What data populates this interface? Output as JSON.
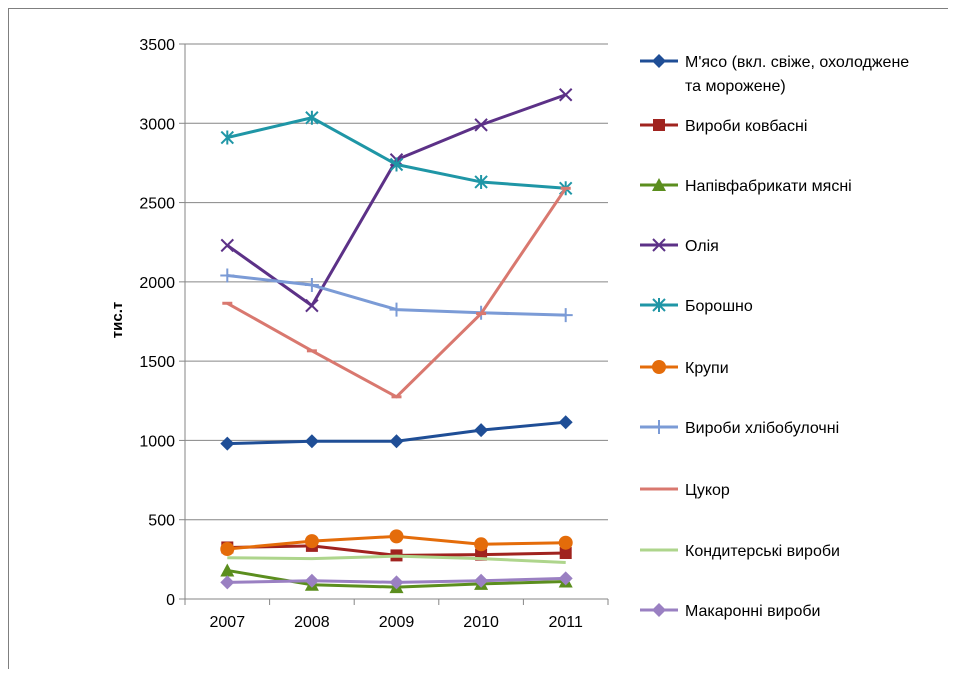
{
  "chart_data": {
    "type": "line",
    "title": "",
    "xlabel": "",
    "ylabel": "тис.т",
    "categories": [
      "2007",
      "2008",
      "2009",
      "2010",
      "2011"
    ],
    "ylim": [
      0,
      3500
    ],
    "yticks": [
      0,
      500,
      1000,
      1500,
      2000,
      2500,
      3000,
      3500
    ],
    "grid": "horizontal",
    "legend_position": "right",
    "series": [
      {
        "name": "М'ясо (вкл. свіже, охолоджене та морожене)",
        "legend_lines": [
          "М'ясо (вкл. свіже, охолоджене",
          "та морожене)"
        ],
        "color": "#1f4e96",
        "marker": "diamond",
        "values": [
          980,
          995,
          995,
          1065,
          1115
        ]
      },
      {
        "name": "Вироби ковбасні",
        "legend_lines": [
          "Вироби ковбасні"
        ],
        "color": "#a0231f",
        "marker": "square",
        "values": [
          325,
          335,
          275,
          280,
          290
        ]
      },
      {
        "name": "Напівфабрикати мясні",
        "legend_lines": [
          "Напівфабрикати мясні"
        ],
        "color": "#5b8e1e",
        "marker": "triangle",
        "values": [
          180,
          90,
          75,
          95,
          110
        ]
      },
      {
        "name": "Олія",
        "legend_lines": [
          "Олія"
        ],
        "color": "#5c3187",
        "marker": "x",
        "values": [
          2230,
          1850,
          2770,
          2990,
          3180
        ]
      },
      {
        "name": "Борошно",
        "legend_lines": [
          "Борошно"
        ],
        "color": "#1f96a6",
        "marker": "asterisk",
        "values": [
          2910,
          3035,
          2740,
          2630,
          2590
        ]
      },
      {
        "name": "Крупи",
        "legend_lines": [
          "Крупи"
        ],
        "color": "#e46c0a",
        "marker": "circle",
        "values": [
          315,
          365,
          395,
          345,
          355
        ]
      },
      {
        "name": "Вироби хлібобулочні",
        "legend_lines": [
          "Вироби хлібобулочні"
        ],
        "color": "#7b9bd6",
        "marker": "plus",
        "values": [
          2040,
          1980,
          1825,
          1805,
          1790
        ]
      },
      {
        "name": "Цукор",
        "legend_lines": [
          "Цукор"
        ],
        "color": "#d9786f",
        "marker": "dash",
        "values": [
          1865,
          1565,
          1275,
          1800,
          2590
        ]
      },
      {
        "name": "Кондитерські вироби",
        "legend_lines": [
          "Кондитерські вироби"
        ],
        "color": "#aed58c",
        "marker": "line",
        "values": [
          260,
          255,
          270,
          255,
          230
        ]
      },
      {
        "name": "Макаронні вироби",
        "legend_lines": [
          "Макаронні вироби"
        ],
        "color": "#9a80c2",
        "marker": "diamond",
        "values": [
          105,
          115,
          105,
          115,
          130
        ]
      }
    ]
  }
}
